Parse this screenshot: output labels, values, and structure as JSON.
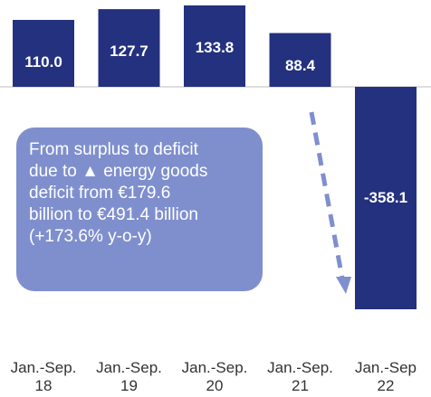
{
  "colors": {
    "bar": "#24317f",
    "callout_bg": "#7f8fce",
    "arrow": "#7f8fce",
    "zero_line": "#bdbdbd"
  },
  "annotation": {
    "text": "From surplus to deficit\ndue to ▲ energy goods\ndeficit from €179.6\nbillion to €491.4 billion\n(+173.6% y-o-y)"
  },
  "chart_data": {
    "type": "bar",
    "categories": [
      "Jan.-Sep.\n18",
      "Jan.-Sep.\n19",
      "Jan.-Sep.\n20",
      "Jan.-Sep.\n21",
      "Jan.-Sep\n22"
    ],
    "values": [
      110.0,
      127.7,
      133.8,
      88.4,
      -358.1
    ],
    "data_labels": [
      "110.0",
      "127.7",
      "133.8",
      "88.4",
      "-358.1"
    ],
    "title": "",
    "xlabel": "",
    "ylabel": "",
    "ylim": [
      -358.1,
      133.8
    ],
    "grid": false,
    "legend": "none"
  }
}
